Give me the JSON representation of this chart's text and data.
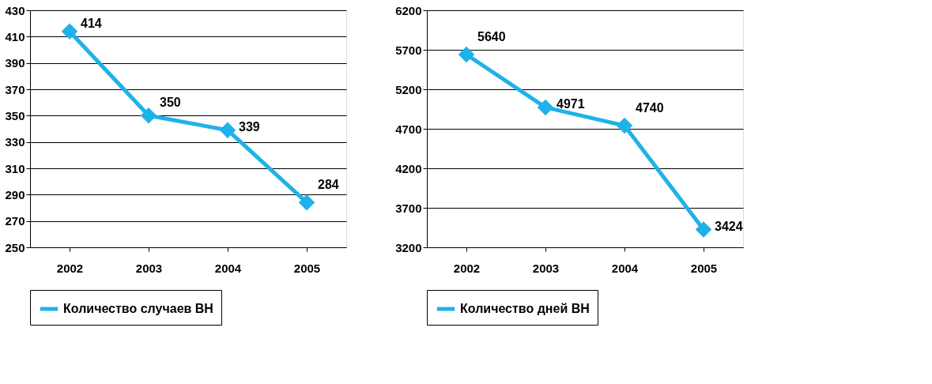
{
  "chart_data": [
    {
      "type": "line",
      "categories": [
        "2002",
        "2003",
        "2004",
        "2005"
      ],
      "series": [
        {
          "name": "Количество случаев ВН",
          "color": "#1fb2e8",
          "values": [
            414,
            350,
            339,
            284
          ]
        }
      ],
      "ylim": [
        250,
        430
      ],
      "yticks": [
        250,
        270,
        290,
        310,
        330,
        350,
        370,
        390,
        410,
        430
      ],
      "grid": "y",
      "legend": "bottom",
      "marker": "diamond",
      "data_labels": true
    },
    {
      "type": "line",
      "categories": [
        "2002",
        "2003",
        "2004",
        "2005"
      ],
      "series": [
        {
          "name": "Количество дней ВН",
          "color": "#1fb2e8",
          "values": [
            5640,
            4971,
            4740,
            3424
          ]
        }
      ],
      "ylim": [
        3200,
        6200
      ],
      "yticks": [
        3200,
        3700,
        4200,
        4700,
        5200,
        5700,
        6200
      ],
      "grid": "y",
      "legend": "bottom",
      "marker": "diamond",
      "data_labels": true
    }
  ]
}
